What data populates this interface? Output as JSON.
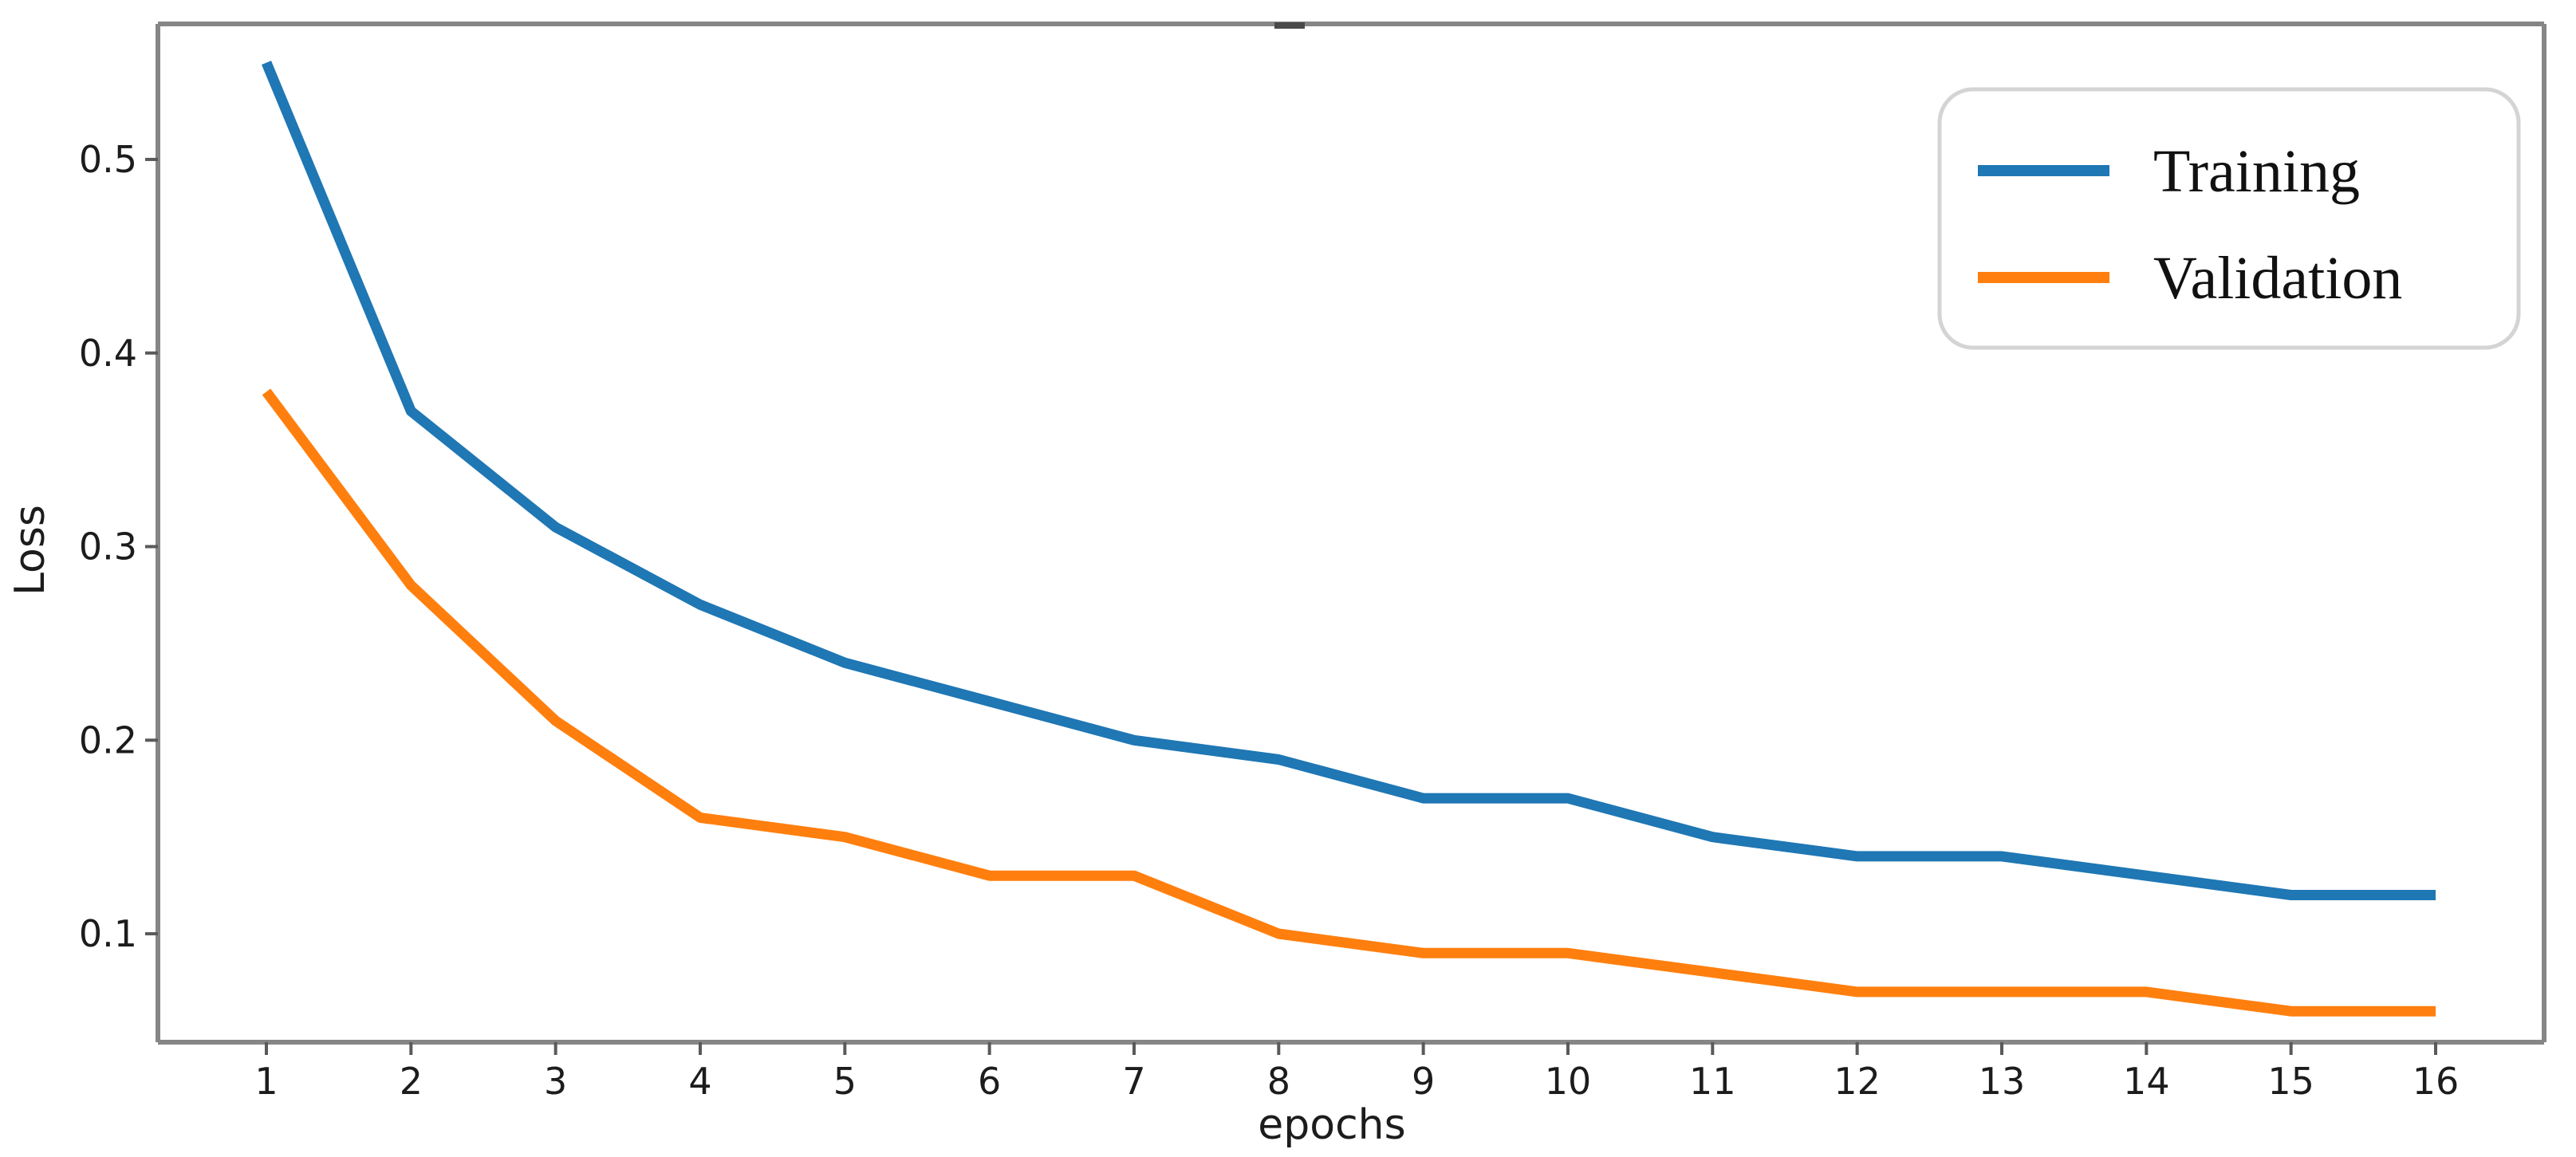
{
  "chart_data": {
    "type": "line",
    "title": "",
    "xlabel": "epochs",
    "ylabel": "Loss",
    "x": [
      1,
      2,
      3,
      4,
      5,
      6,
      7,
      8,
      9,
      10,
      11,
      12,
      13,
      14,
      15,
      16
    ],
    "series": [
      {
        "name": "Training",
        "color": "#1f77b4",
        "values": [
          0.55,
          0.37,
          0.31,
          0.27,
          0.24,
          0.22,
          0.2,
          0.19,
          0.17,
          0.17,
          0.15,
          0.14,
          0.14,
          0.13,
          0.12,
          0.12
        ]
      },
      {
        "name": "Validation",
        "color": "#ff7f0e",
        "values": [
          0.38,
          0.28,
          0.21,
          0.16,
          0.15,
          0.13,
          0.13,
          0.1,
          0.09,
          0.09,
          0.08,
          0.07,
          0.07,
          0.07,
          0.06,
          0.06
        ]
      }
    ],
    "xticks": [
      "1",
      "2",
      "3",
      "4",
      "5",
      "6",
      "7",
      "8",
      "9",
      "10",
      "11",
      "12",
      "13",
      "14",
      "15",
      "16"
    ],
    "yticks": [
      "0.1",
      "0.2",
      "0.3",
      "0.4",
      "0.5"
    ],
    "xlim": [
      0.25,
      16.75
    ],
    "ylim": [
      0.044,
      0.57
    ],
    "grid": false,
    "legend_position": "upper right"
  }
}
